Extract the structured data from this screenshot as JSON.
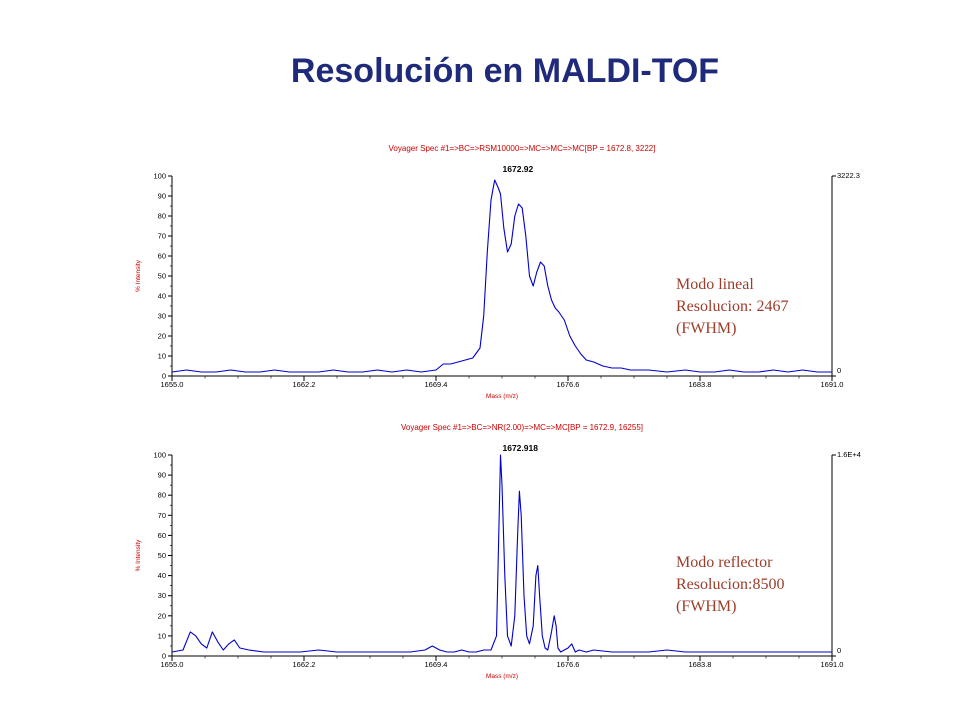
{
  "slide": {
    "title": "Resolución en MALDI-TOF",
    "notes": [
      [
        "Modo lineal",
        "Resolucion: 2467",
        "(FWHM)"
      ],
      [
        "Modo reflector",
        "Resolucion:8500",
        "(FWHM)"
      ]
    ]
  },
  "colors": {
    "title": "#1f2a7a",
    "note": "#9b3d2a",
    "trace": "#0000cc",
    "spectrum_title": "#cc0000"
  },
  "chart_data": [
    {
      "type": "line",
      "title": "Voyager Spec #1=>BC=>RSM10000=>MC=>MC=>MC[BP = 1672.8, 3222]",
      "xlabel": "Mass (m/z)",
      "ylabel": "% Intensity",
      "xlim": [
        1655.0,
        1691.0
      ],
      "ylim": [
        0,
        100
      ],
      "x_ticks": [
        "1655.0",
        "1662.2",
        "1669.4",
        "1676.6",
        "1683.8",
        "1691.0"
      ],
      "y_ticks": [
        "0",
        "10",
        "20",
        "30",
        "40",
        "50",
        "60",
        "70",
        "80",
        "90",
        "100"
      ],
      "right_axis": [
        "3222.3",
        "0"
      ],
      "peak_label": {
        "x": 1672.92,
        "text": "1672.92"
      },
      "series": [
        {
          "x": [
            1655.0,
            1655.8,
            1656.6,
            1657.4,
            1658.2,
            1659.0,
            1659.8,
            1660.6,
            1661.4,
            1662.2,
            1663.0,
            1663.8,
            1664.6,
            1665.4,
            1666.2,
            1667.0,
            1667.8,
            1668.6,
            1669.4,
            1669.8,
            1670.2,
            1670.6,
            1671.0,
            1671.4,
            1671.8,
            1672.0,
            1672.2,
            1672.4,
            1672.6,
            1672.8,
            1672.92,
            1673.1,
            1673.3,
            1673.5,
            1673.7,
            1673.9,
            1674.1,
            1674.3,
            1674.5,
            1674.7,
            1674.9,
            1675.1,
            1675.3,
            1675.5,
            1675.7,
            1675.9,
            1676.1,
            1676.4,
            1676.7,
            1677.0,
            1677.3,
            1677.6,
            1678.0,
            1678.5,
            1679.0,
            1679.5,
            1680.0,
            1681.0,
            1682.0,
            1683.0,
            1683.8,
            1684.6,
            1685.4,
            1686.2,
            1687.0,
            1687.8,
            1688.6,
            1689.4,
            1690.2,
            1691.0
          ],
          "y": [
            2,
            3,
            2,
            2,
            3,
            2,
            2,
            3,
            2,
            2,
            2,
            3,
            2,
            2,
            3,
            2,
            3,
            2,
            3,
            6,
            6,
            7,
            8,
            9,
            14,
            30,
            62,
            88,
            98,
            94,
            91,
            74,
            62,
            66,
            80,
            86,
            84,
            70,
            50,
            45,
            52,
            57,
            55,
            45,
            38,
            34,
            32,
            28,
            20,
            15,
            11,
            8,
            7,
            5,
            4,
            4,
            3,
            3,
            2,
            3,
            2,
            2,
            3,
            2,
            2,
            3,
            2,
            3,
            2,
            2
          ]
        }
      ]
    },
    {
      "type": "line",
      "title": "Voyager Spec #1=>BC=>NR(2.00)=>MC=>MC[BP = 1672.9, 16255]",
      "xlabel": "Mass (m/z)",
      "ylabel": "% Intensity",
      "xlim": [
        1655.0,
        1691.0
      ],
      "ylim": [
        0,
        100
      ],
      "x_ticks": [
        "1655.0",
        "1662.2",
        "1669.4",
        "1676.6",
        "1683.8",
        "1691.0"
      ],
      "y_ticks": [
        "0",
        "10",
        "20",
        "30",
        "40",
        "50",
        "60",
        "70",
        "80",
        "90",
        "100"
      ],
      "right_axis": [
        "1.6E+4",
        "0"
      ],
      "peak_label": {
        "x": 1672.918,
        "text": "1672.918"
      },
      "series": [
        {
          "x": [
            1655.0,
            1655.6,
            1656.0,
            1656.3,
            1656.6,
            1656.9,
            1657.2,
            1657.5,
            1657.8,
            1658.1,
            1658.4,
            1658.7,
            1659.2,
            1660.0,
            1661.0,
            1662.0,
            1663.0,
            1664.0,
            1665.0,
            1666.0,
            1667.0,
            1668.0,
            1668.8,
            1669.2,
            1669.6,
            1670.0,
            1670.4,
            1670.8,
            1671.2,
            1671.6,
            1672.0,
            1672.4,
            1672.7,
            1672.85,
            1672.918,
            1673.0,
            1673.15,
            1673.3,
            1673.5,
            1673.7,
            1673.85,
            1673.95,
            1674.05,
            1674.2,
            1674.35,
            1674.5,
            1674.7,
            1674.85,
            1674.95,
            1675.05,
            1675.2,
            1675.35,
            1675.5,
            1675.7,
            1675.85,
            1675.95,
            1676.05,
            1676.2,
            1676.4,
            1676.6,
            1676.8,
            1677.0,
            1677.2,
            1677.6,
            1678.0,
            1679.0,
            1680.0,
            1681.0,
            1682.0,
            1683.0,
            1684.0,
            1685.0,
            1686.0,
            1687.0,
            1688.0,
            1689.0,
            1690.0,
            1691.0
          ],
          "y": [
            2,
            3,
            12,
            10,
            6,
            4,
            12,
            7,
            3,
            6,
            8,
            4,
            3,
            2,
            2,
            2,
            3,
            2,
            2,
            2,
            2,
            2,
            3,
            5,
            3,
            2,
            2,
            3,
            2,
            2,
            3,
            3,
            10,
            70,
            100,
            85,
            40,
            10,
            5,
            20,
            60,
            82,
            70,
            30,
            10,
            6,
            15,
            40,
            45,
            30,
            10,
            4,
            3,
            12,
            20,
            15,
            4,
            2,
            3,
            4,
            6,
            2,
            3,
            2,
            3,
            2,
            2,
            2,
            3,
            2,
            2,
            2,
            2,
            2,
            2,
            2,
            2,
            2
          ]
        }
      ]
    }
  ]
}
